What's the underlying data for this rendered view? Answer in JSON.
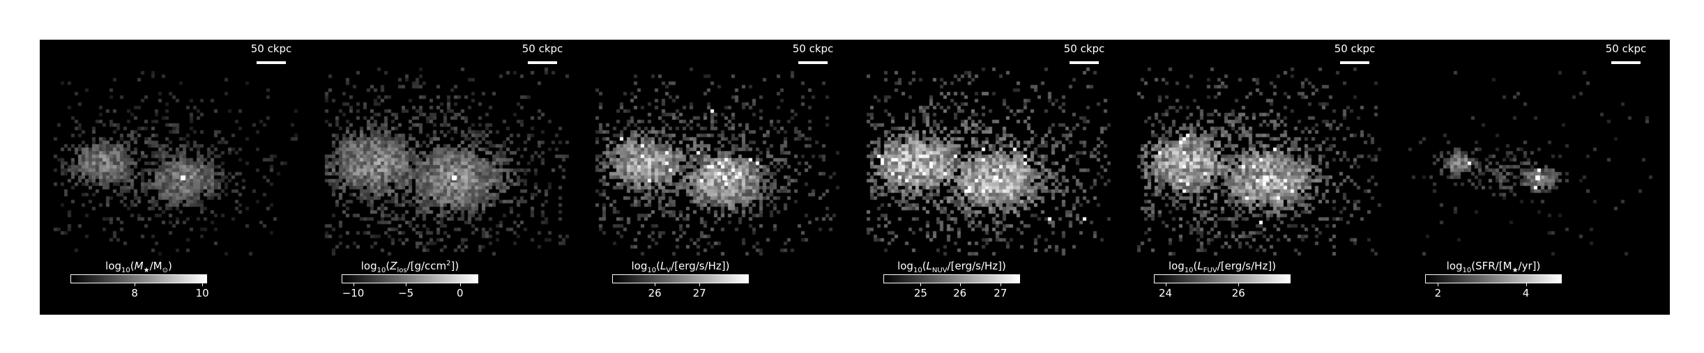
{
  "figure": {
    "panels": [
      {
        "scalebar_label": "50 ckpc",
        "colorbar": {
          "quantity": "M",
          "title_before": "log",
          "title_base": "10",
          "title_open": "(",
          "title_sym": "M",
          "title_sub": "★",
          "title_rest": "/M",
          "title_rest_sub": "⊙",
          "title_sup": "",
          "title_close": ")",
          "ticks": [
            {
              "label": "8",
              "frac": 0.47
            },
            {
              "label": "10",
              "frac": 0.97
            }
          ]
        }
      },
      {
        "scalebar_label": "50 ckpc",
        "colorbar": {
          "quantity": "Z",
          "title_before": "log",
          "title_base": "10",
          "title_open": "(",
          "title_sym": "Z",
          "title_sub": "los",
          "title_rest": "/[g/ccm",
          "title_rest_sub": "",
          "title_sup": "2",
          "title_close": "])",
          "ticks": [
            {
              "label": "−10",
              "frac": 0.08
            },
            {
              "label": "−5",
              "frac": 0.47
            },
            {
              "label": "0",
              "frac": 0.87
            }
          ]
        }
      },
      {
        "scalebar_label": "50 ckpc",
        "colorbar": {
          "quantity": "LV",
          "title_before": "log",
          "title_base": "10",
          "title_open": "(",
          "title_sym": "L",
          "title_sub": "V",
          "title_rest": "/[erg/s/Hz]",
          "title_rest_sub": "",
          "title_sup": "",
          "title_close": ")",
          "ticks": [
            {
              "label": "26",
              "frac": 0.31
            },
            {
              "label": "27",
              "frac": 0.64
            }
          ]
        }
      },
      {
        "scalebar_label": "50 ckpc",
        "colorbar": {
          "quantity": "LNUV",
          "title_before": "log",
          "title_base": "10",
          "title_open": "(",
          "title_sym": "L",
          "title_sub": "NUV",
          "title_rest": "/[erg/s/Hz]",
          "title_rest_sub": "",
          "title_sup": "",
          "title_close": ")",
          "ticks": [
            {
              "label": "25",
              "frac": 0.27
            },
            {
              "label": "26",
              "frac": 0.56
            },
            {
              "label": "27",
              "frac": 0.86
            }
          ]
        }
      },
      {
        "scalebar_label": "50 ckpc",
        "colorbar": {
          "quantity": "LFUV",
          "title_before": "log",
          "title_base": "10",
          "title_open": "(",
          "title_sym": "L",
          "title_sub": "FUV",
          "title_rest": "/[erg/s/Hz]",
          "title_rest_sub": "",
          "title_sup": "",
          "title_close": ")",
          "ticks": [
            {
              "label": "24",
              "frac": 0.08
            },
            {
              "label": "26",
              "frac": 0.62
            }
          ]
        }
      },
      {
        "scalebar_label": "50 ckpc",
        "colorbar": {
          "quantity": "SFR",
          "title_before": "log",
          "title_base": "10",
          "title_open": "(",
          "title_sym": "SFR",
          "title_sub": "",
          "title_rest": "/[M",
          "title_rest_sub": "★",
          "title_sup": "",
          "title_close": "/yr])",
          "ticks": [
            {
              "label": "2",
              "frac": 0.09
            },
            {
              "label": "4",
              "frac": 0.74
            }
          ]
        }
      }
    ]
  }
}
